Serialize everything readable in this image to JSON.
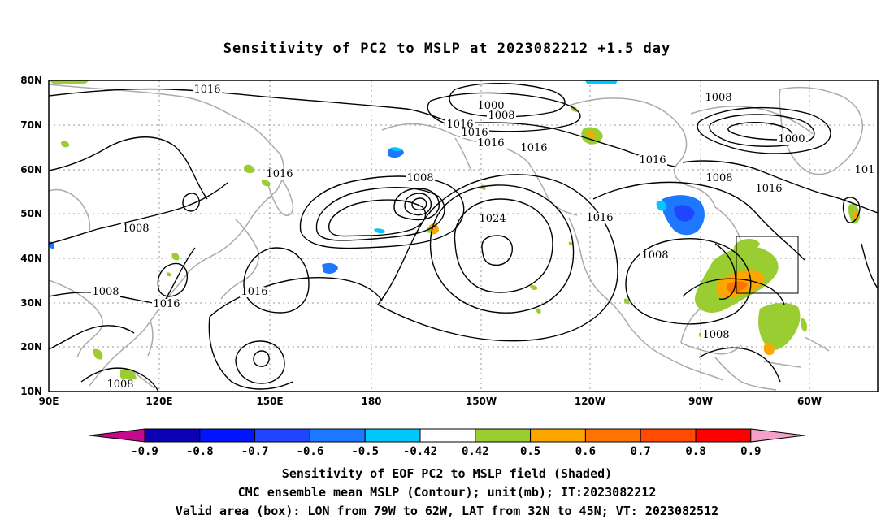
{
  "title": "Sensitivity of PC2 to MSLP at 2023082212 +1.5 day",
  "map": {
    "lat_labels": [
      "80N",
      "70N",
      "60N",
      "50N",
      "40N",
      "30N",
      "20N",
      "10N"
    ],
    "lon_labels": [
      "90E",
      "120E",
      "150E",
      "180",
      "150W",
      "120W",
      "90W",
      "60W"
    ],
    "contour_labels": [
      {
        "text": "1016"
      },
      {
        "text": "1000"
      },
      {
        "text": "1008"
      },
      {
        "text": "1016"
      },
      {
        "text": "1016"
      },
      {
        "text": "1016"
      },
      {
        "text": "1016"
      },
      {
        "text": "1008"
      },
      {
        "text": "1000"
      },
      {
        "text": "1016"
      },
      {
        "text": "1008"
      },
      {
        "text": "1016"
      },
      {
        "text": "101"
      },
      {
        "text": "1008"
      },
      {
        "text": "1024"
      },
      {
        "text": "1016"
      },
      {
        "text": "1016"
      },
      {
        "text": "1008"
      },
      {
        "text": "1008"
      },
      {
        "text": "1016"
      },
      {
        "text": "1008"
      },
      {
        "text": "1016"
      },
      {
        "text": "1008"
      },
      {
        "text": "1008"
      }
    ],
    "valid_box": {
      "lon_from": "79W",
      "lon_to": "62W",
      "lat_from": "32N",
      "lat_to": "45N"
    },
    "colors": {
      "contour": "#000000",
      "coast": "#aaaaaa",
      "grid": "#9a9a9a",
      "box": "#000000"
    }
  },
  "colorbar": {
    "labels": [
      "-0.9",
      "-0.8",
      "-0.7",
      "-0.6",
      "-0.5",
      "-0.42",
      "0.42",
      "0.5",
      "0.6",
      "0.7",
      "0.8",
      "0.9"
    ],
    "colors": [
      "#c6098c",
      "#0a00b4",
      "#0014ff",
      "#1e46ff",
      "#1e78ff",
      "#00c8ff",
      "#ffffff",
      "#9acd32",
      "#ffa500",
      "#ff7300",
      "#ff4b00",
      "#ff0000",
      "#f5a0c8"
    ]
  },
  "caption": {
    "line1": "Sensitivity of EOF PC2 to MSLP field (Shaded)",
    "line2": "CMC ensemble mean MSLP (Contour); unit(mb); IT:2023082212",
    "line3": "Valid area (box): LON from 79W to 62W, LAT from 32N to 45N; VT: 2023082512"
  }
}
